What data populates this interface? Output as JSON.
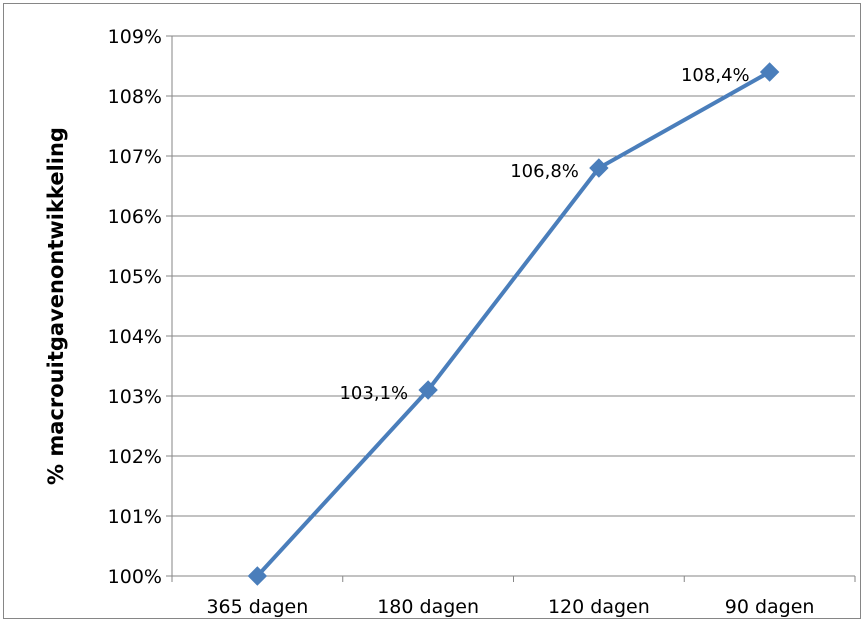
{
  "chart_data": {
    "type": "line",
    "title": "",
    "xlabel": "",
    "ylabel": "% macrouitgavenontwikkeling",
    "categories": [
      "365 dagen",
      "180 dagen",
      "120 dagen",
      "90 dagen"
    ],
    "series": [
      {
        "values": [
          100.0,
          103.1,
          106.8,
          108.4
        ],
        "data_labels": [
          "",
          "103,1%",
          "106,8%",
          "108,4%"
        ],
        "color": "#4a7ebb",
        "marker": "diamond"
      }
    ],
    "ylim": [
      100,
      109
    ],
    "y_ticks": [
      "100%",
      "101%",
      "102%",
      "103%",
      "104%",
      "105%",
      "106%",
      "107%",
      "108%",
      "109%"
    ],
    "grid": true,
    "legend": "none"
  }
}
